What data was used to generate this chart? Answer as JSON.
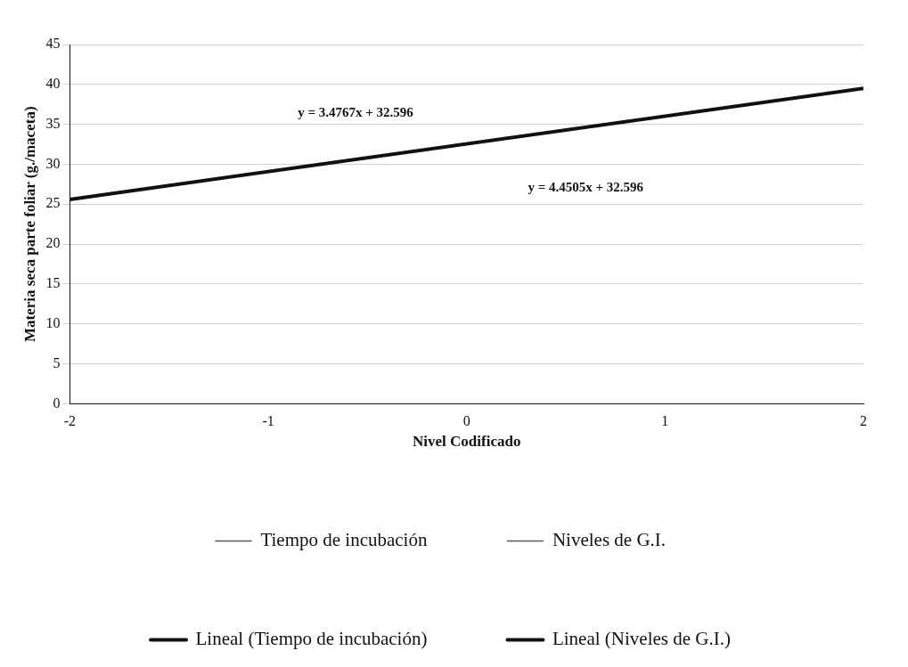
{
  "chart_data": {
    "type": "line",
    "xlabel": "Nivel Codificado",
    "ylabel": "Materia seca parte foliar (g./maceta)",
    "x": [
      -2,
      2
    ],
    "series": [
      {
        "name": "Tiempo de incubación",
        "color": "#555555",
        "values": [
          null,
          null
        ]
      },
      {
        "name": "Niveles de G.I.",
        "color": "#555555",
        "values": [
          null,
          null
        ]
      },
      {
        "name": "Lineal (Tiempo de incubación)",
        "color": "#111111",
        "values": [
          25.6,
          39.5
        ]
      },
      {
        "name": "Lineal (Niveles de G.I.)",
        "color": "#111111",
        "values": [
          null,
          null
        ]
      }
    ],
    "xlim": [
      -2,
      2
    ],
    "xticks": [
      -2,
      -1,
      0,
      1,
      2
    ],
    "ylim": [
      0,
      45
    ],
    "yticks": [
      0,
      5,
      10,
      15,
      20,
      25,
      30,
      35,
      40,
      45
    ],
    "grid": "y",
    "legend": "bottom",
    "marker": "none",
    "line_style": "solid",
    "annotations": [
      "y = 3.4767x + 32.596",
      "y = 4.4505x + 32.596"
    ]
  }
}
